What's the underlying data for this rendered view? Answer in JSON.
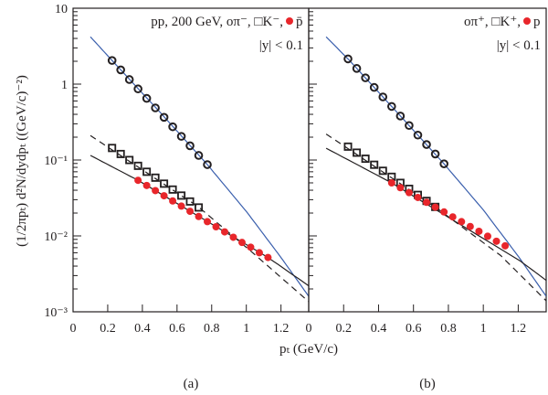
{
  "y_axis_label": "(1/2πpₜ) d²N/dydpₜ ((GeV/c)⁻²)",
  "x_axis_label": "pₜ (GeV/c)",
  "colors": {
    "blue_fit": "#3a5fad",
    "black_fit": "#231f20",
    "proton": "#e8262b",
    "axis": "#231f20"
  },
  "chart_data": [
    {
      "type": "scatter",
      "panel_label": "(a)",
      "legend": {
        "line1": "pp, 200 GeV, oπ⁻, □K⁻, ",
        "proton_label": "p̄",
        "line2": "|y| < 0.1",
        "placement": "top-right"
      },
      "xlabel": "pT (GeV/c)",
      "ylabel": "(1/2πpT) d2N/dydpT ((GeV/c)-2)",
      "xlim": [
        0,
        1.36
      ],
      "ylim": [
        0.001,
        10
      ],
      "yscale": "log",
      "x_ticks": [
        "0",
        "0.2",
        "0.4",
        "0.6",
        "0.8",
        "1",
        "1.2"
      ],
      "y_ticks": [
        "10⁻³",
        "10⁻²",
        "10⁻¹",
        "1",
        "10"
      ],
      "series": [
        {
          "name": "pi-",
          "marker": "open-circle",
          "x": [
            0.225,
            0.275,
            0.325,
            0.375,
            0.425,
            0.475,
            0.525,
            0.575,
            0.625,
            0.675,
            0.725,
            0.775
          ],
          "y": [
            2.05,
            1.54,
            1.15,
            0.865,
            0.649,
            0.486,
            0.365,
            0.274,
            0.205,
            0.154,
            0.115,
            0.087
          ]
        },
        {
          "name": "K-",
          "marker": "open-square",
          "x": [
            0.225,
            0.275,
            0.325,
            0.375,
            0.425,
            0.475,
            0.525,
            0.575,
            0.625,
            0.675,
            0.725
          ],
          "y": [
            0.144,
            0.12,
            0.1,
            0.0838,
            0.07,
            0.0585,
            0.0488,
            0.0408,
            0.034,
            0.0284,
            0.0237
          ]
        },
        {
          "name": "pbar",
          "marker": "filled-circle",
          "x": [
            0.375,
            0.425,
            0.475,
            0.525,
            0.575,
            0.625,
            0.675,
            0.725,
            0.775,
            0.825,
            0.875,
            0.925,
            0.975,
            1.025,
            1.075,
            1.125
          ],
          "y": [
            0.054,
            0.0462,
            0.0395,
            0.0338,
            0.0289,
            0.0247,
            0.0211,
            0.018,
            0.0154,
            0.0132,
            0.0113,
            0.0096,
            0.0082,
            0.0071,
            0.006,
            0.0052
          ]
        }
      ],
      "fits": [
        {
          "name": "pion-fit",
          "style": "blue",
          "x": [
            0.1,
            0.225,
            0.5,
            0.775,
            1.0,
            1.2,
            1.36
          ],
          "y": [
            4.2,
            2.05,
            0.43,
            0.087,
            0.021,
            0.0052,
            0.0016
          ]
        },
        {
          "name": "kaon-fit",
          "style": "dashed",
          "x": [
            0.1,
            0.725,
            1.06,
            1.36
          ],
          "y": [
            0.21,
            0.024,
            0.0054,
            0.00136
          ]
        },
        {
          "name": "proton-fit",
          "style": "solid",
          "x": [
            0.1,
            0.375,
            1.125,
            1.36
          ],
          "y": [
            0.115,
            0.054,
            0.0052,
            0.0022
          ]
        }
      ]
    },
    {
      "type": "scatter",
      "panel_label": "(b)",
      "legend": {
        "line1": "oπ⁺, □K⁺, ",
        "proton_label": "p",
        "line2": "|y| < 0.1",
        "placement": "top-right"
      },
      "xlabel": "pT (GeV/c)",
      "xlim": [
        0,
        1.36
      ],
      "ylim": [
        0.001,
        10
      ],
      "yscale": "log",
      "x_ticks": [
        "0",
        "0.2",
        "0.4",
        "0.6",
        "0.8",
        "1",
        "1.2"
      ],
      "series": [
        {
          "name": "pi+",
          "marker": "open-circle",
          "x": [
            0.225,
            0.275,
            0.325,
            0.375,
            0.425,
            0.475,
            0.525,
            0.575,
            0.625,
            0.675,
            0.725,
            0.775
          ],
          "y": [
            2.15,
            1.61,
            1.21,
            0.905,
            0.678,
            0.508,
            0.38,
            0.285,
            0.213,
            0.16,
            0.12,
            0.089
          ]
        },
        {
          "name": "K+",
          "marker": "open-square",
          "x": [
            0.225,
            0.275,
            0.325,
            0.375,
            0.425,
            0.475,
            0.525,
            0.575,
            0.625,
            0.675,
            0.725
          ],
          "y": [
            0.15,
            0.125,
            0.104,
            0.0866,
            0.0721,
            0.0601,
            0.05,
            0.0417,
            0.0347,
            0.0289,
            0.0241
          ]
        },
        {
          "name": "p",
          "marker": "filled-circle",
          "x": [
            0.475,
            0.525,
            0.575,
            0.625,
            0.675,
            0.725,
            0.775,
            0.825,
            0.875,
            0.925,
            0.975,
            1.025,
            1.075,
            1.125
          ],
          "y": [
            0.05,
            0.0432,
            0.0372,
            0.0321,
            0.0277,
            0.0239,
            0.0207,
            0.0178,
            0.0154,
            0.0133,
            0.0115,
            0.0099,
            0.0085,
            0.0074
          ]
        }
      ],
      "fits": [
        {
          "name": "pion-fit",
          "style": "blue",
          "x": [
            0.1,
            0.225,
            0.5,
            0.775,
            1.0,
            1.2,
            1.36
          ],
          "y": [
            4.2,
            2.15,
            0.44,
            0.089,
            0.022,
            0.0054,
            0.0016
          ]
        },
        {
          "name": "kaon-fit",
          "style": "dashed",
          "x": [
            0.1,
            0.725,
            1.1,
            1.36
          ],
          "y": [
            0.22,
            0.024,
            0.0055,
            0.0014
          ]
        },
        {
          "name": "proton-fit",
          "style": "solid",
          "x": [
            0.1,
            0.475,
            1.21,
            1.36
          ],
          "y": [
            0.143,
            0.05,
            0.0047,
            0.0026
          ]
        }
      ]
    }
  ]
}
